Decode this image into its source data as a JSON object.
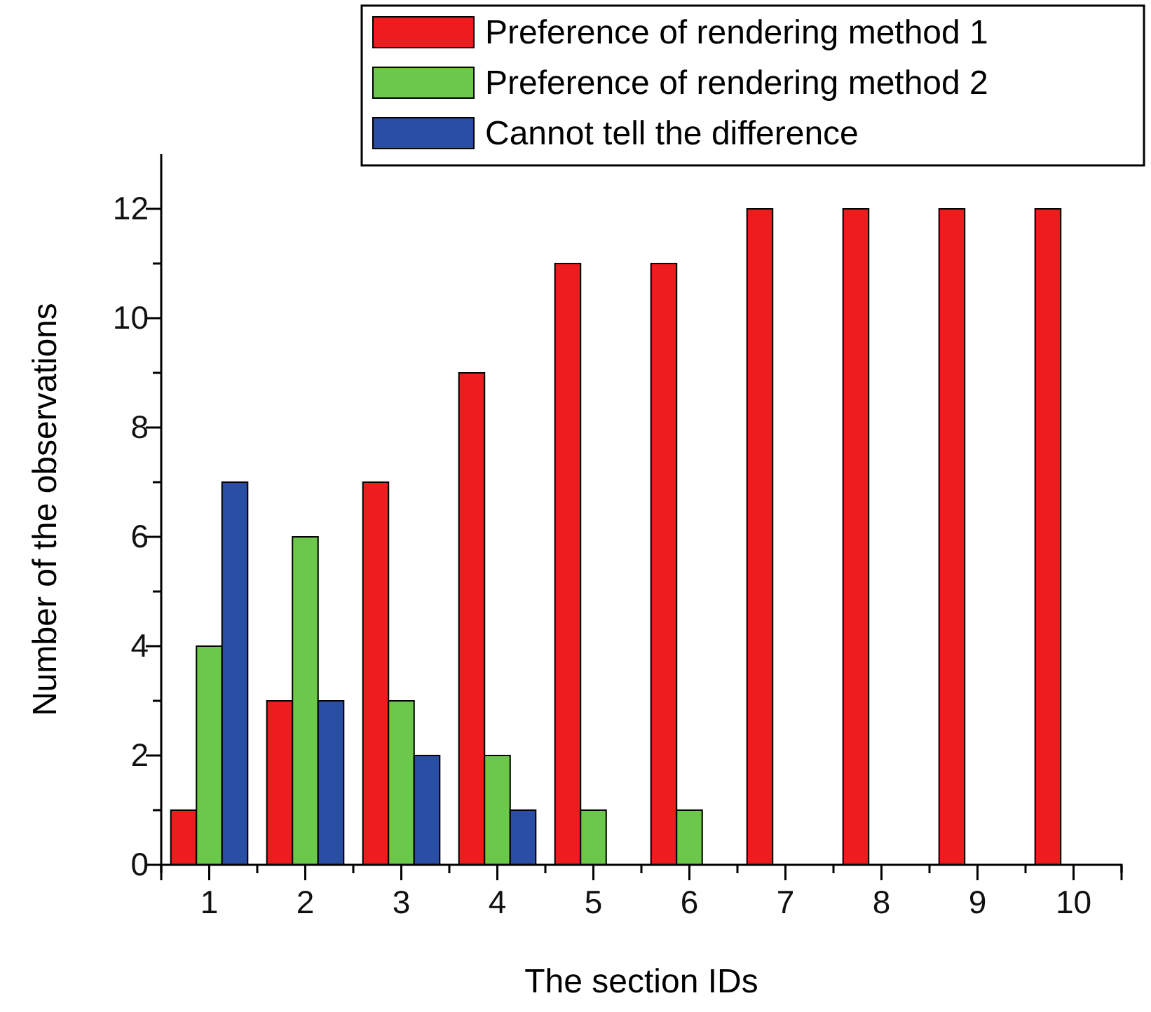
{
  "chart_data": {
    "type": "bar",
    "xlabel": "The section IDs",
    "ylabel": "Number of the observations",
    "categories": [
      "1",
      "2",
      "3",
      "4",
      "5",
      "6",
      "7",
      "8",
      "9",
      "10"
    ],
    "series": [
      {
        "name": "Preference of rendering method 1",
        "color": "#ee1c1c",
        "values": [
          1,
          3,
          7,
          9,
          11,
          11,
          12,
          12,
          12,
          12
        ]
      },
      {
        "name": "Preference of rendering method 2",
        "color": "#6cc84a",
        "values": [
          4,
          6,
          3,
          2,
          1,
          1,
          0,
          0,
          0,
          0
        ]
      },
      {
        "name": "Cannot tell the difference",
        "color": "#2a4ea6",
        "values": [
          7,
          3,
          2,
          1,
          0,
          0,
          0,
          0,
          0,
          0
        ]
      }
    ],
    "ylim": [
      0,
      13
    ],
    "yticks": [
      0,
      {
        "value": 1,
        "label": null
      },
      2,
      {
        "value": 3,
        "label": null
      },
      4,
      {
        "value": 5,
        "label": null
      },
      6,
      {
        "value": 7,
        "label": null
      },
      8,
      {
        "value": 9,
        "label": null
      },
      10,
      {
        "value": 11,
        "label": null
      },
      12
    ],
    "grid": false,
    "legend": "top right"
  }
}
